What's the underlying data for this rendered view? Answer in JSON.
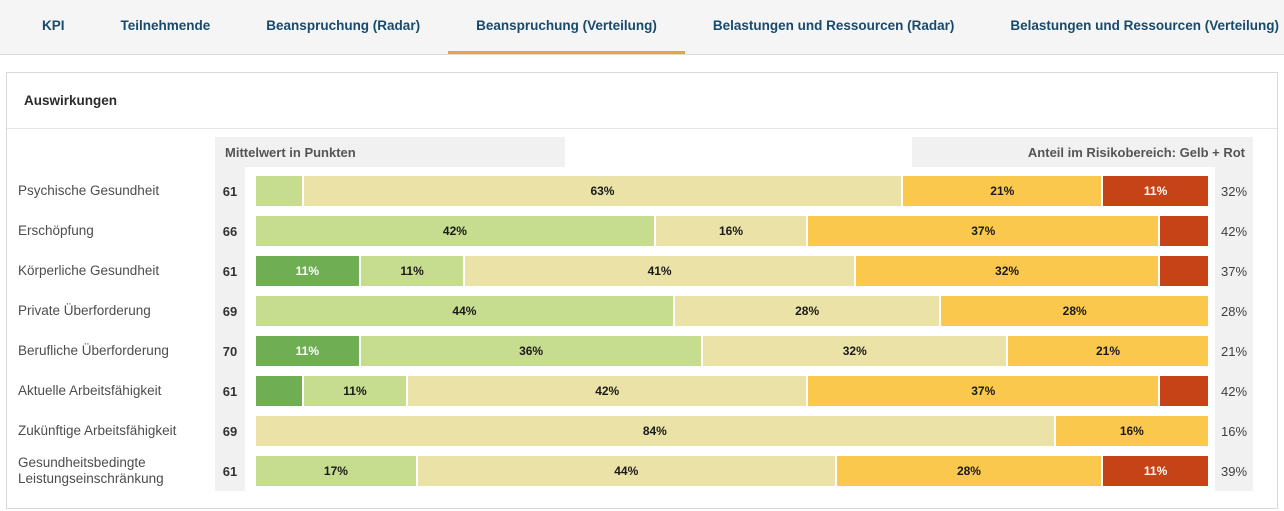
{
  "tabs": [
    {
      "label": "KPI",
      "active": false
    },
    {
      "label": "Teilnehmende",
      "active": false
    },
    {
      "label": "Beanspruchung (Radar)",
      "active": false
    },
    {
      "label": "Beanspruchung (Verteilung)",
      "active": true
    },
    {
      "label": "Belastungen und Ressourcen (Radar)",
      "active": false
    },
    {
      "label": "Belastungen und Ressourcen (Verteilung)",
      "active": false
    }
  ],
  "card": {
    "title": "Auswirkungen"
  },
  "chart_data": {
    "type": "bar",
    "stacked": true,
    "orientation": "horizontal",
    "title": "Auswirkungen",
    "left_header": "Mittelwert in Punkten",
    "right_header": "Anteil im Risikobereich: Gelb + Rot",
    "value_unit": "percent",
    "xlim": [
      0,
      100
    ],
    "palette": {
      "darkgreen": "#6fae53",
      "lightgreen": "#c6dc8f",
      "tan": "#ebe2a7",
      "orange": "#fbc84e",
      "red": "#c54317",
      "accent_underline": "#e9a33c",
      "tab_text": "#174a6c",
      "strip_bg": "#f1f1f1"
    },
    "rows": [
      {
        "label_lines": [
          "Psychische Gesundheit"
        ],
        "mean": "61",
        "risk": "32%",
        "segments": [
          {
            "color": "lightgreen",
            "value": 5,
            "label": ""
          },
          {
            "color": "tan",
            "value": 63,
            "label": "63%"
          },
          {
            "color": "orange",
            "value": 21,
            "label": "21%"
          },
          {
            "color": "red",
            "value": 11,
            "label": "11%"
          }
        ]
      },
      {
        "label_lines": [
          "Erschöpfung"
        ],
        "mean": "66",
        "risk": "42%",
        "segments": [
          {
            "color": "lightgreen",
            "value": 42,
            "label": "42%"
          },
          {
            "color": "tan",
            "value": 16,
            "label": "16%"
          },
          {
            "color": "orange",
            "value": 37,
            "label": "37%"
          },
          {
            "color": "red",
            "value": 5,
            "label": ""
          }
        ]
      },
      {
        "label_lines": [
          "Körperliche Gesundheit"
        ],
        "mean": "61",
        "risk": "37%",
        "segments": [
          {
            "color": "darkgreen",
            "value": 11,
            "label": "11%"
          },
          {
            "color": "lightgreen",
            "value": 11,
            "label": "11%"
          },
          {
            "color": "tan",
            "value": 41,
            "label": "41%"
          },
          {
            "color": "orange",
            "value": 32,
            "label": "32%"
          },
          {
            "color": "red",
            "value": 5,
            "label": ""
          }
        ]
      },
      {
        "label_lines": [
          "Private Überforderung"
        ],
        "mean": "69",
        "risk": "28%",
        "segments": [
          {
            "color": "lightgreen",
            "value": 44,
            "label": "44%"
          },
          {
            "color": "tan",
            "value": 28,
            "label": "28%"
          },
          {
            "color": "orange",
            "value": 28,
            "label": "28%"
          }
        ]
      },
      {
        "label_lines": [
          "Berufliche Überforderung"
        ],
        "mean": "70",
        "risk": "21%",
        "segments": [
          {
            "color": "darkgreen",
            "value": 11,
            "label": "11%"
          },
          {
            "color": "lightgreen",
            "value": 36,
            "label": "36%"
          },
          {
            "color": "tan",
            "value": 32,
            "label": "32%"
          },
          {
            "color": "orange",
            "value": 21,
            "label": "21%"
          }
        ]
      },
      {
        "label_lines": [
          "Aktuelle Arbeitsfähigkeit"
        ],
        "mean": "61",
        "risk": "42%",
        "segments": [
          {
            "color": "darkgreen",
            "value": 5,
            "label": ""
          },
          {
            "color": "lightgreen",
            "value": 11,
            "label": "11%"
          },
          {
            "color": "tan",
            "value": 42,
            "label": "42%"
          },
          {
            "color": "orange",
            "value": 37,
            "label": "37%"
          },
          {
            "color": "red",
            "value": 5,
            "label": ""
          }
        ]
      },
      {
        "label_lines": [
          "Zukünftige Arbeitsfähigkeit"
        ],
        "mean": "69",
        "risk": "16%",
        "segments": [
          {
            "color": "tan",
            "value": 84,
            "label": "84%"
          },
          {
            "color": "orange",
            "value": 16,
            "label": "16%"
          }
        ]
      },
      {
        "label_lines": [
          "Gesundheitsbedingte",
          "Leistungseinschränkung"
        ],
        "mean": "61",
        "risk": "39%",
        "segments": [
          {
            "color": "lightgreen",
            "value": 17,
            "label": "17%"
          },
          {
            "color": "tan",
            "value": 44,
            "label": "44%"
          },
          {
            "color": "orange",
            "value": 28,
            "label": "28%"
          },
          {
            "color": "red",
            "value": 11,
            "label": "11%"
          }
        ]
      }
    ]
  }
}
